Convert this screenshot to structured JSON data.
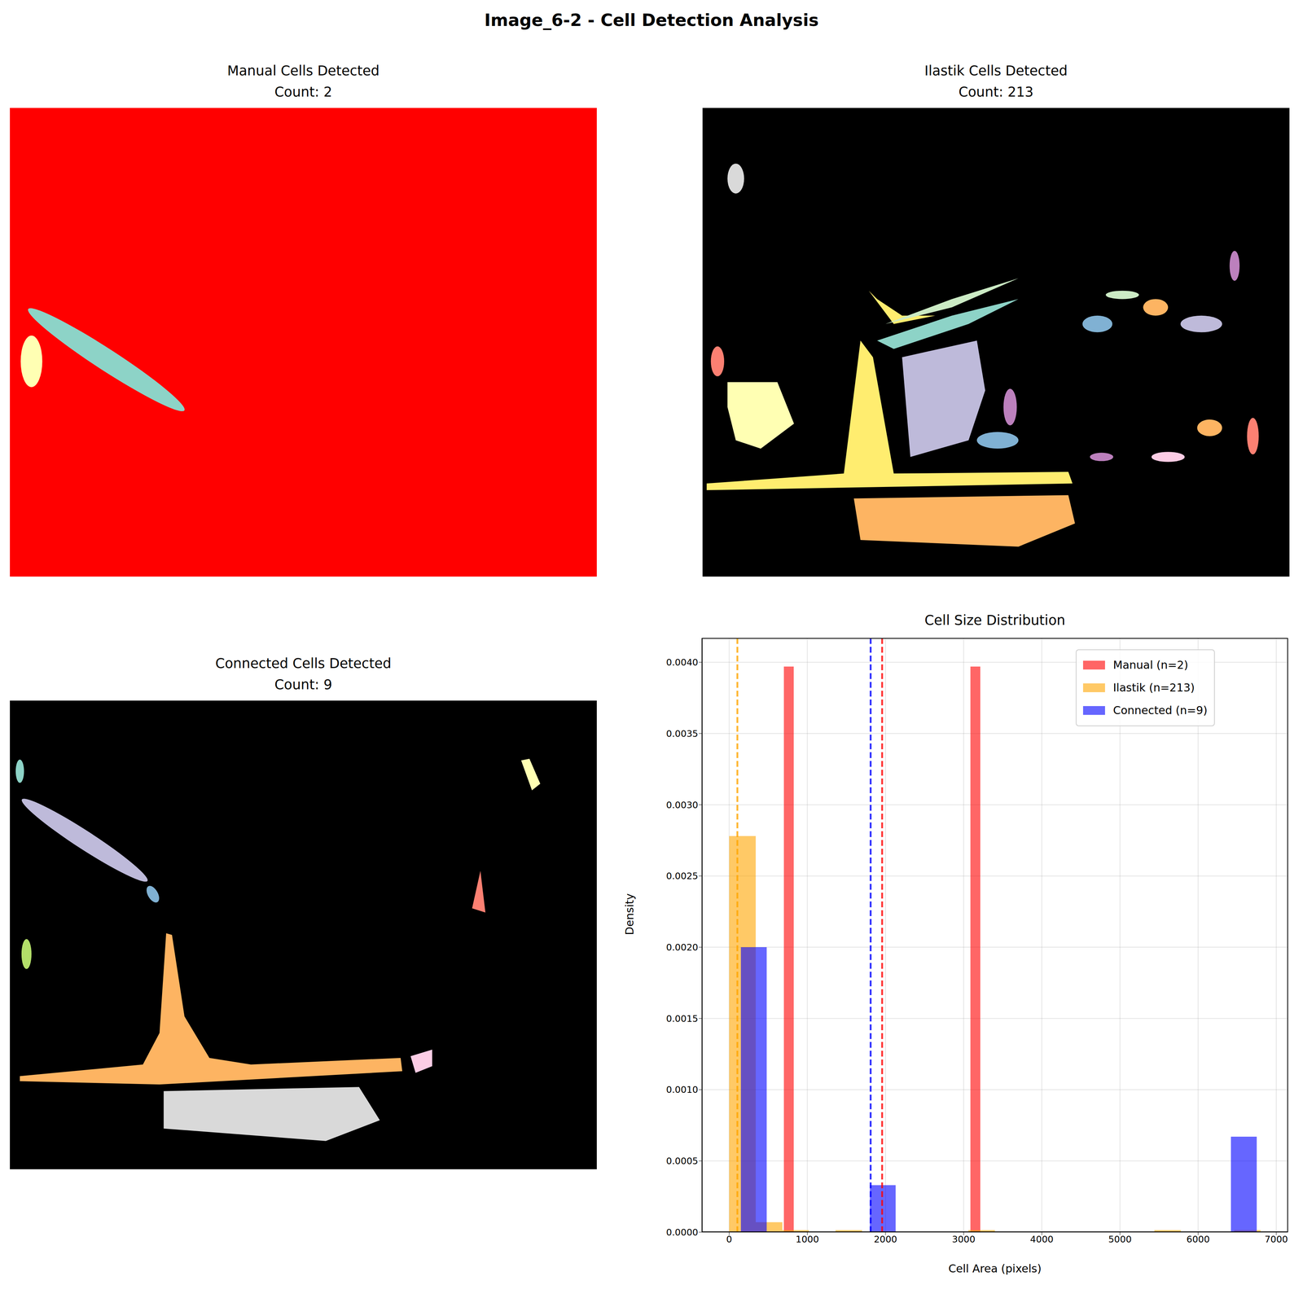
{
  "title": "Image_6-2 - Cell Detection Analysis",
  "panels": [
    {
      "title": "Manual Cells Detected",
      "count_label": "Count: 2"
    },
    {
      "title": "Ilastik Cells Detected",
      "count_label": "Count: 213"
    },
    {
      "title": "Connected Cells Detected",
      "count_label": "Count: 9"
    }
  ],
  "chart_data": {
    "type": "histogram",
    "title": "Cell Size Distribution",
    "x_label": "Cell Area (pixels)",
    "y_label": "Density",
    "xlim": [
      -350,
      7150
    ],
    "xticks": [
      0,
      1000,
      2000,
      3000,
      4000,
      5000,
      6000,
      7000
    ],
    "ylim": [
      0,
      0.00417
    ],
    "yticks": [
      {
        "value": 0,
        "label": "0.0000"
      },
      {
        "value": 0.0005,
        "label": "0.0005"
      },
      {
        "value": 0.001,
        "label": "0.0010"
      },
      {
        "value": 0.0015,
        "label": "0.0015"
      },
      {
        "value": 0.002,
        "label": "0.0020"
      },
      {
        "value": 0.0025,
        "label": "0.0025"
      },
      {
        "value": 0.003,
        "label": "0.0030"
      },
      {
        "value": 0.0035,
        "label": "0.0035"
      },
      {
        "value": 0.004,
        "label": "0.0040"
      }
    ],
    "grid": true,
    "legend": "upper right",
    "series": [
      {
        "name": "Manual (n=2)",
        "color": "red",
        "bins": [
          700,
          826,
          3087,
          3213
        ],
        "values": [
          0.00397,
          0,
          0.00397
        ],
        "mean": 1957
      },
      {
        "name": "Ilastik (n=213)",
        "color": "orange",
        "bins": [
          0,
          340,
          680,
          1020,
          1360,
          1700,
          2040,
          2380,
          2720,
          3060,
          3400,
          3740,
          4080,
          4420,
          4760,
          5100,
          5440,
          5780,
          6120,
          6460,
          6800
        ],
        "values": [
          0.00278,
          7e-05,
          1.4e-05,
          0,
          1.4e-05,
          0,
          0,
          0,
          0,
          1.4e-05,
          0,
          0,
          0,
          0,
          0,
          0,
          1.4e-05,
          0,
          0,
          1.4e-05
        ],
        "mean": 105
      },
      {
        "name": "Connected (n=9)",
        "color": "blue",
        "bins": [
          150,
          480,
          810,
          1140,
          1470,
          1800,
          2130,
          2460,
          2790,
          3120,
          3450,
          3780,
          4110,
          4440,
          4770,
          5100,
          5430,
          5760,
          6090,
          6420,
          6750
        ],
        "values": [
          0.002,
          0,
          0,
          0,
          0,
          0.00033,
          0,
          0,
          0,
          0,
          0,
          0,
          0,
          0,
          0,
          0,
          0,
          0,
          0,
          0.00067
        ],
        "mean": 1810
      }
    ]
  }
}
